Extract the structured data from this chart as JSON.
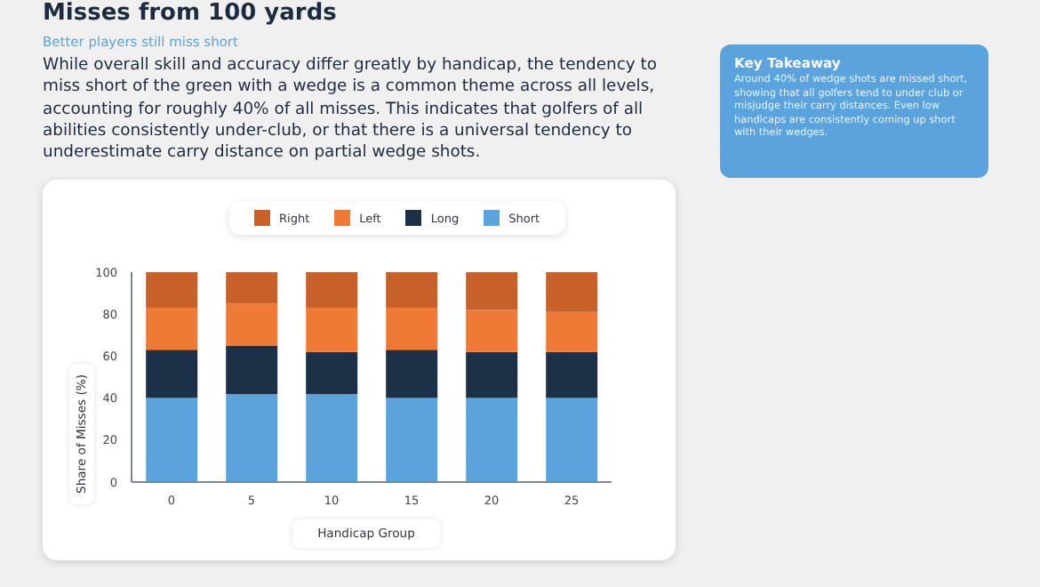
{
  "chart_data": {
    "type": "bar",
    "title": "Misses from 100 yards",
    "subtitle": "Better players still miss short",
    "xlabel": "Handicap Group",
    "ylabel": "Share of Misses (%)",
    "annotations": [
      "While overall skill and accuracy differ greatly by handicap, the tendency to miss short of the green with a wedge is a common theme across all levels, accounting for roughly 40% of all misses. This indicates that golfers of all abilities consistently under-club, or that there is a universal tendency to underestimate carry distance on partial wedge shots.",
      "Key Takeaway",
      "Around 40% of wedge shots are missed short, showing that all golfers tend to under club or misjudge their carry distances. Even low handicaps are consistently coming up short with their wedges."
    ],
    "categories": [
      "0",
      "5",
      "10",
      "15",
      "20",
      "25"
    ],
    "stacked": true,
    "series": [
      {
        "name": "Short",
        "color": "#5ba3dc",
        "values": [
          40,
          42,
          42,
          40,
          40,
          40
        ]
      },
      {
        "name": "Long",
        "color": "#1c3048",
        "values": [
          23,
          23,
          20,
          23,
          22,
          22
        ]
      },
      {
        "name": "Left",
        "color": "#ee7a35",
        "values": [
          20,
          20,
          21,
          20,
          20,
          19
        ]
      },
      {
        "name": "Right",
        "color": "#c8602a",
        "values": [
          17,
          15,
          17,
          17,
          18,
          19
        ]
      }
    ],
    "ylim": [
      0,
      100
    ],
    "yticks": [
      0,
      20,
      40,
      60,
      80,
      100
    ],
    "grid": false,
    "legend": "top"
  }
}
